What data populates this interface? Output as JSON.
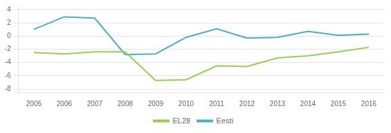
{
  "chart_data": {
    "type": "line",
    "x": [
      2005,
      2006,
      2007,
      2008,
      2009,
      2010,
      2011,
      2012,
      2013,
      2014,
      2015,
      2016
    ],
    "series": [
      {
        "name": "EL28",
        "color": "#92d050",
        "values": [
          -2.5,
          -2.7,
          -2.4,
          -2.4,
          -6.7,
          -6.6,
          -4.5,
          -4.6,
          -3.3,
          -3.0,
          -2.4,
          -1.7
        ]
      },
      {
        "name": "Eesti",
        "color": "#4bacc6",
        "values": [
          1.0,
          2.9,
          2.7,
          -2.8,
          -2.7,
          -0.2,
          1.1,
          -0.3,
          -0.2,
          0.7,
          0.1,
          0.3
        ]
      }
    ],
    "xlim": [
      2004.5,
      2016.5
    ],
    "xticks": [
      2005,
      2006,
      2007,
      2008,
      2009,
      2010,
      2011,
      2012,
      2013,
      2014,
      2015,
      2016
    ],
    "ylim": [
      -8.5,
      4.5
    ],
    "yticks": [
      -8,
      -6,
      -4,
      -2,
      0,
      2,
      4
    ],
    "grid": true,
    "legend": "bottom"
  }
}
